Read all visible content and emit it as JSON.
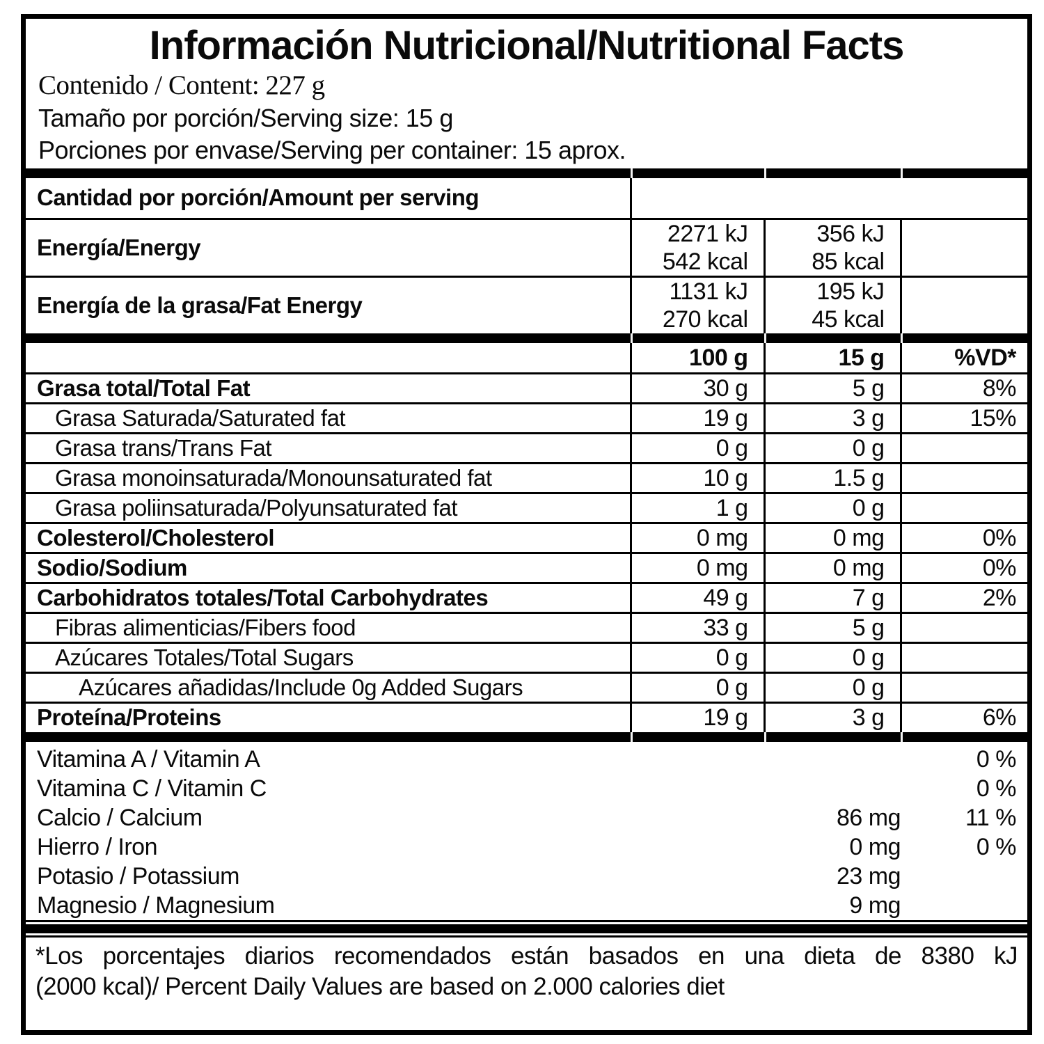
{
  "title": "Información Nutricional/Nutritional Facts",
  "content_line": "Contenido / Content: 227 g",
  "serving_size_line": "Tamaño por porción/Serving size: 15 g",
  "servings_line": "Porciones por envase/Serving per container: 15 aprox.",
  "amount_header": "Cantidad por porción/Amount per serving",
  "energy_rows": [
    {
      "label": "Energía/Energy",
      "per100": [
        "2271 kJ",
        "542 kcal"
      ],
      "per15": [
        "356 kJ",
        "85 kcal"
      ]
    },
    {
      "label": "Energía de la grasa/Fat Energy",
      "per100": [
        "1131 kJ",
        "270 kcal"
      ],
      "per15": [
        "195 kJ",
        "45 kcal"
      ]
    }
  ],
  "column_headers": {
    "per100": "100 g",
    "per15": "15 g",
    "vd": "%VD*"
  },
  "nutrient_rows": [
    {
      "label": "Grasa total/Total Fat",
      "bold": true,
      "indent": 0,
      "per100": "30 g",
      "per15": "5 g",
      "vd": "8%"
    },
    {
      "label": "Grasa Saturada/Saturated fat",
      "bold": false,
      "indent": 1,
      "per100": "19 g",
      "per15": "3 g",
      "vd": "15%"
    },
    {
      "label": "Grasa trans/Trans Fat",
      "bold": false,
      "indent": 1,
      "per100": "0 g",
      "per15": "0 g",
      "vd": ""
    },
    {
      "label": "Grasa monoinsaturada/Monounsaturated fat",
      "bold": false,
      "indent": 1,
      "per100": "10 g",
      "per15": "1.5 g",
      "vd": ""
    },
    {
      "label": "Grasa poliinsaturada/Polyunsaturated fat",
      "bold": false,
      "indent": 1,
      "per100": "1 g",
      "per15": "0 g",
      "vd": ""
    },
    {
      "label": "Colesterol/Cholesterol",
      "bold": true,
      "indent": 0,
      "per100": "0 mg",
      "per15": "0 mg",
      "vd": "0%"
    },
    {
      "label": "Sodio/Sodium",
      "bold": true,
      "indent": 0,
      "per100": "0 mg",
      "per15": "0 mg",
      "vd": "0%"
    },
    {
      "label": "Carbohidratos totales/Total Carbohydrates",
      "bold": true,
      "indent": 0,
      "per100": "49 g",
      "per15": "7 g",
      "vd": "2%"
    },
    {
      "label": "Fibras alimenticias/Fibers food",
      "bold": false,
      "indent": 1,
      "per100": "33 g",
      "per15": "5 g",
      "vd": ""
    },
    {
      "label": "Azúcares Totales/Total Sugars",
      "bold": false,
      "indent": 1,
      "per100": "0 g",
      "per15": "0 g",
      "vd": ""
    },
    {
      "label": "Azúcares añadidas/Include 0g Added Sugars",
      "bold": false,
      "indent": 2,
      "per100": "0 g",
      "per15": "0 g",
      "vd": ""
    },
    {
      "label": "Proteína/Proteins",
      "bold": true,
      "indent": 0,
      "per100": "19 g",
      "per15": "3 g",
      "vd": "6%"
    }
  ],
  "micronutrient_rows": [
    {
      "label": "Vitamina A / Vitamin A",
      "amount": "",
      "vd": "0 %"
    },
    {
      "label": "Vitamina C / Vitamin C",
      "amount": "",
      "vd": "0 %"
    },
    {
      "label": "Calcio / Calcium",
      "amount": "86 mg",
      "vd": "11 %"
    },
    {
      "label": "Hierro / Iron",
      "amount": "0 mg",
      "vd": "0 %"
    },
    {
      "label": "Potasio / Potassium",
      "amount": "23 mg",
      "vd": ""
    },
    {
      "label": "Magnesio / Magnesium",
      "amount": "9 mg",
      "vd": ""
    }
  ],
  "footnote_line1": "*Los porcentajes diarios recomendados están basados en una dieta de 8380 kJ",
  "footnote_line2": "(2000 kcal)/ Percent Daily Values are based on 2.000 calories diet"
}
